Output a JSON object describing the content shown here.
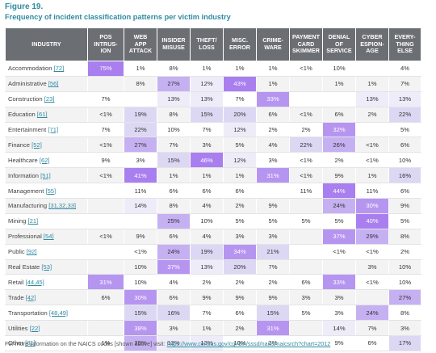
{
  "figure_label": "Figure 19.",
  "title": "Frequency of incident classification patterns per victim industry",
  "footnote_text": "For more information on the NAICS codes [shown above] visit:",
  "footnote_link": "https://www.census.gov/cgi-bin/sssd/naics/naicsrch?chart=2012",
  "colors": {
    "header_bg": "#6b6f73",
    "accent": "#2f8aa0",
    "low": "#ffffff",
    "mid": "#dcd8f3",
    "high": "#a97ff0"
  },
  "chart_data": {
    "type": "heatmap",
    "row_header": "INDUSTRY",
    "columns": [
      [
        "POS",
        "INTRUS-",
        "ION"
      ],
      [
        "WEB",
        "APP",
        "ATTACK"
      ],
      [
        "INSIDER",
        "MISUSE"
      ],
      [
        "THEFT/",
        "LOSS"
      ],
      [
        "MISC.",
        "ERROR"
      ],
      [
        "CRIME-",
        "WARE"
      ],
      [
        "PAYMENT",
        "CARD",
        "SKIMMER"
      ],
      [
        "DENIAL",
        "OF",
        "SERVICE"
      ],
      [
        "CYBER",
        "ESPION-",
        "AGE"
      ],
      [
        "EVERY-",
        "THING",
        "ELSE"
      ]
    ],
    "rows": [
      {
        "industry": "Accommodation",
        "codes": "[72]",
        "cells": [
          "75%",
          "1%",
          "8%",
          "1%",
          "1%",
          "1%",
          "<1%",
          "10%",
          "",
          "4%"
        ],
        "values": [
          75,
          1,
          8,
          1,
          1,
          1,
          0.5,
          10,
          null,
          4
        ]
      },
      {
        "industry": "Administrative",
        "codes": "[56]",
        "cells": [
          "",
          "8%",
          "27%",
          "12%",
          "43%",
          "1%",
          "",
          "1%",
          "1%",
          "7%"
        ],
        "values": [
          null,
          8,
          27,
          12,
          43,
          1,
          null,
          1,
          1,
          7
        ]
      },
      {
        "industry": "Construction",
        "codes": "[23]",
        "cells": [
          "7%",
          "",
          "13%",
          "13%",
          "7%",
          "33%",
          "",
          "",
          "13%",
          "13%"
        ],
        "values": [
          7,
          null,
          13,
          13,
          7,
          33,
          null,
          null,
          13,
          13
        ]
      },
      {
        "industry": "Education",
        "codes": "[61]",
        "cells": [
          "<1%",
          "19%",
          "8%",
          "15%",
          "20%",
          "6%",
          "<1%",
          "6%",
          "2%",
          "22%"
        ],
        "values": [
          0.5,
          19,
          8,
          15,
          20,
          6,
          0.5,
          6,
          2,
          22
        ]
      },
      {
        "industry": "Entertainment",
        "codes": "[71]",
        "cells": [
          "7%",
          "22%",
          "10%",
          "7%",
          "12%",
          "2%",
          "2%",
          "32%",
          "",
          "5%"
        ],
        "values": [
          7,
          22,
          10,
          7,
          12,
          2,
          2,
          32,
          null,
          5
        ]
      },
      {
        "industry": "Finance",
        "codes": "[52]",
        "cells": [
          "<1%",
          "27%",
          "7%",
          "3%",
          "5%",
          "4%",
          "22%",
          "26%",
          "<1%",
          "6%"
        ],
        "values": [
          0.5,
          27,
          7,
          3,
          5,
          4,
          22,
          26,
          0.5,
          6
        ]
      },
      {
        "industry": "Healthcare",
        "codes": "[62]",
        "cells": [
          "9%",
          "3%",
          "15%",
          "46%",
          "12%",
          "3%",
          "<1%",
          "2%",
          "<1%",
          "10%"
        ],
        "values": [
          9,
          3,
          15,
          46,
          12,
          3,
          0.5,
          2,
          0.5,
          10
        ]
      },
      {
        "industry": "Information",
        "codes": "[51]",
        "cells": [
          "<1%",
          "41%",
          "1%",
          "1%",
          "1%",
          "31%",
          "<1%",
          "9%",
          "1%",
          "16%"
        ],
        "values": [
          0.5,
          41,
          1,
          1,
          1,
          31,
          0.5,
          9,
          1,
          16
        ]
      },
      {
        "industry": "Management",
        "codes": "[55]",
        "cells": [
          "",
          "11%",
          "6%",
          "6%",
          "6%",
          "",
          "11%",
          "44%",
          "11%",
          "6%"
        ],
        "values": [
          null,
          11,
          6,
          6,
          6,
          null,
          11,
          44,
          11,
          6
        ]
      },
      {
        "industry": "Manufacturing",
        "codes": "[31,32,33]",
        "cells": [
          "",
          "14%",
          "8%",
          "4%",
          "2%",
          "9%",
          "",
          "24%",
          "30%",
          "9%"
        ],
        "values": [
          null,
          14,
          8,
          4,
          2,
          9,
          null,
          24,
          30,
          9
        ]
      },
      {
        "industry": "Mining",
        "codes": "[21]",
        "cells": [
          "",
          "",
          "25%",
          "10%",
          "5%",
          "5%",
          "5%",
          "5%",
          "40%",
          "5%"
        ],
        "values": [
          null,
          null,
          25,
          10,
          5,
          5,
          5,
          5,
          40,
          5
        ]
      },
      {
        "industry": "Professional",
        "codes": "[54]",
        "cells": [
          "<1%",
          "9%",
          "6%",
          "4%",
          "3%",
          "3%",
          "",
          "37%",
          "29%",
          "8%"
        ],
        "values": [
          0.5,
          9,
          6,
          4,
          3,
          3,
          null,
          37,
          29,
          8
        ]
      },
      {
        "industry": "Public",
        "codes": "[92]",
        "cells": [
          "",
          "<1%",
          "24%",
          "19%",
          "34%",
          "21%",
          "",
          "<1%",
          "<1%",
          "2%"
        ],
        "values": [
          null,
          0.5,
          24,
          19,
          34,
          21,
          null,
          0.5,
          0.5,
          2
        ]
      },
      {
        "industry": "Real Estate",
        "codes": "[53]",
        "cells": [
          "",
          "10%",
          "37%",
          "13%",
          "20%",
          "7%",
          "",
          "",
          "3%",
          "10%"
        ],
        "values": [
          null,
          10,
          37,
          13,
          20,
          7,
          null,
          null,
          3,
          10
        ]
      },
      {
        "industry": "Retail",
        "codes": "[44,45]",
        "cells": [
          "31%",
          "10%",
          "4%",
          "2%",
          "2%",
          "2%",
          "6%",
          "33%",
          "<1%",
          "10%"
        ],
        "values": [
          31,
          10,
          4,
          2,
          2,
          2,
          6,
          33,
          0.5,
          10
        ]
      },
      {
        "industry": "Trade",
        "codes": "[42]",
        "cells": [
          "6%",
          "30%",
          "6%",
          "9%",
          "9%",
          "9%",
          "3%",
          "3%",
          "",
          "27%"
        ],
        "values": [
          6,
          30,
          6,
          9,
          9,
          9,
          3,
          3,
          null,
          27
        ]
      },
      {
        "industry": "Transportation",
        "codes": "[48,49]",
        "cells": [
          "",
          "15%",
          "16%",
          "7%",
          "6%",
          "15%",
          "5%",
          "3%",
          "24%",
          "8%"
        ],
        "values": [
          null,
          15,
          16,
          7,
          6,
          15,
          5,
          3,
          24,
          8
        ]
      },
      {
        "industry": "Utilities",
        "codes": "[22]",
        "cells": [
          "",
          "38%",
          "3%",
          "1%",
          "2%",
          "31%",
          "",
          "14%",
          "7%",
          "3%"
        ],
        "values": [
          null,
          38,
          3,
          1,
          2,
          31,
          null,
          14,
          7,
          3
        ]
      },
      {
        "industry": "Other",
        "codes": "[81]",
        "cells": [
          "1%",
          "29%",
          "13%",
          "13%",
          "10%",
          "3%",
          "",
          "9%",
          "6%",
          "17%"
        ],
        "values": [
          1,
          29,
          13,
          13,
          10,
          3,
          null,
          9,
          6,
          17
        ]
      }
    ]
  }
}
